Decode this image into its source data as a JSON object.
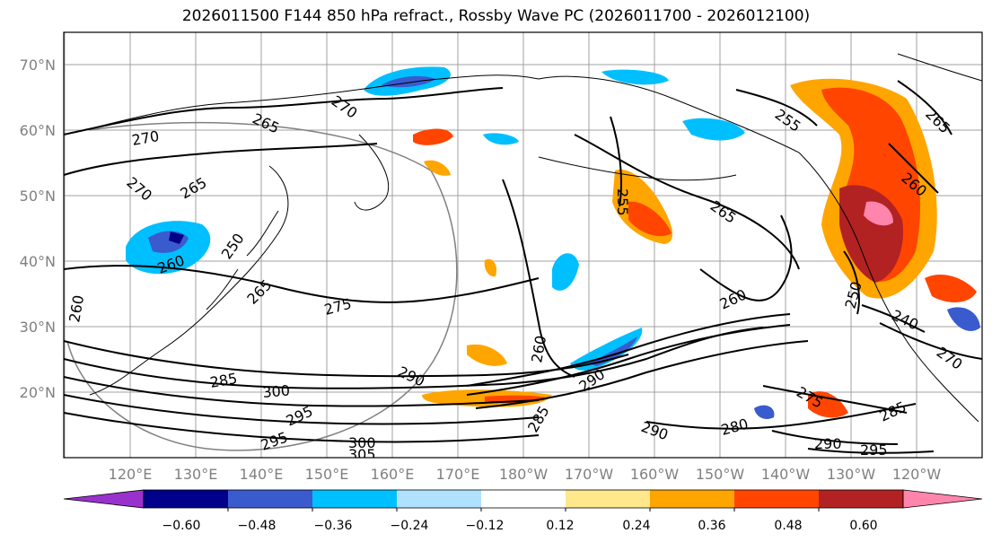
{
  "title": "2026011500 F144 850 hPa refract., Rossby Wave PC (2026011700 - 2026012100)",
  "map": {
    "lat_labels": [
      "70°N",
      "60°N",
      "50°N",
      "40°N",
      "30°N",
      "20°N"
    ],
    "lon_labels": [
      "120°E",
      "130°E",
      "140°E",
      "150°E",
      "160°E",
      "170°E",
      "180°W",
      "170°W",
      "160°W",
      "150°W",
      "140°W",
      "130°W",
      "120°W"
    ],
    "contour_labels": [
      "265",
      "270",
      "270",
      "265",
      "270",
      "255",
      "255",
      "265",
      "260",
      "250",
      "240",
      "260",
      "265",
      "275",
      "285",
      "300",
      "290",
      "295",
      "300",
      "305",
      "295",
      "290",
      "260",
      "290",
      "280",
      "275",
      "285",
      "290",
      "295",
      "270",
      "260",
      "250",
      "285",
      "260",
      "265"
    ],
    "line_color": "#000000",
    "grid_color": "#a0a0a0",
    "coast_color": "#000000"
  },
  "colorbar": {
    "tick_labels": [
      "−0.60",
      "−0.48",
      "−0.36",
      "−0.24",
      "−0.12",
      "0.12",
      "0.24",
      "0.36",
      "0.48",
      "0.60"
    ],
    "colors": [
      "#9932cc",
      "#00008b",
      "#3a5bcd",
      "#00bfff",
      "#b0e2ff",
      "#ffffff",
      "#ffe78c",
      "#ffa500",
      "#ff4500",
      "#b22222",
      "#ff85ad"
    ]
  }
}
